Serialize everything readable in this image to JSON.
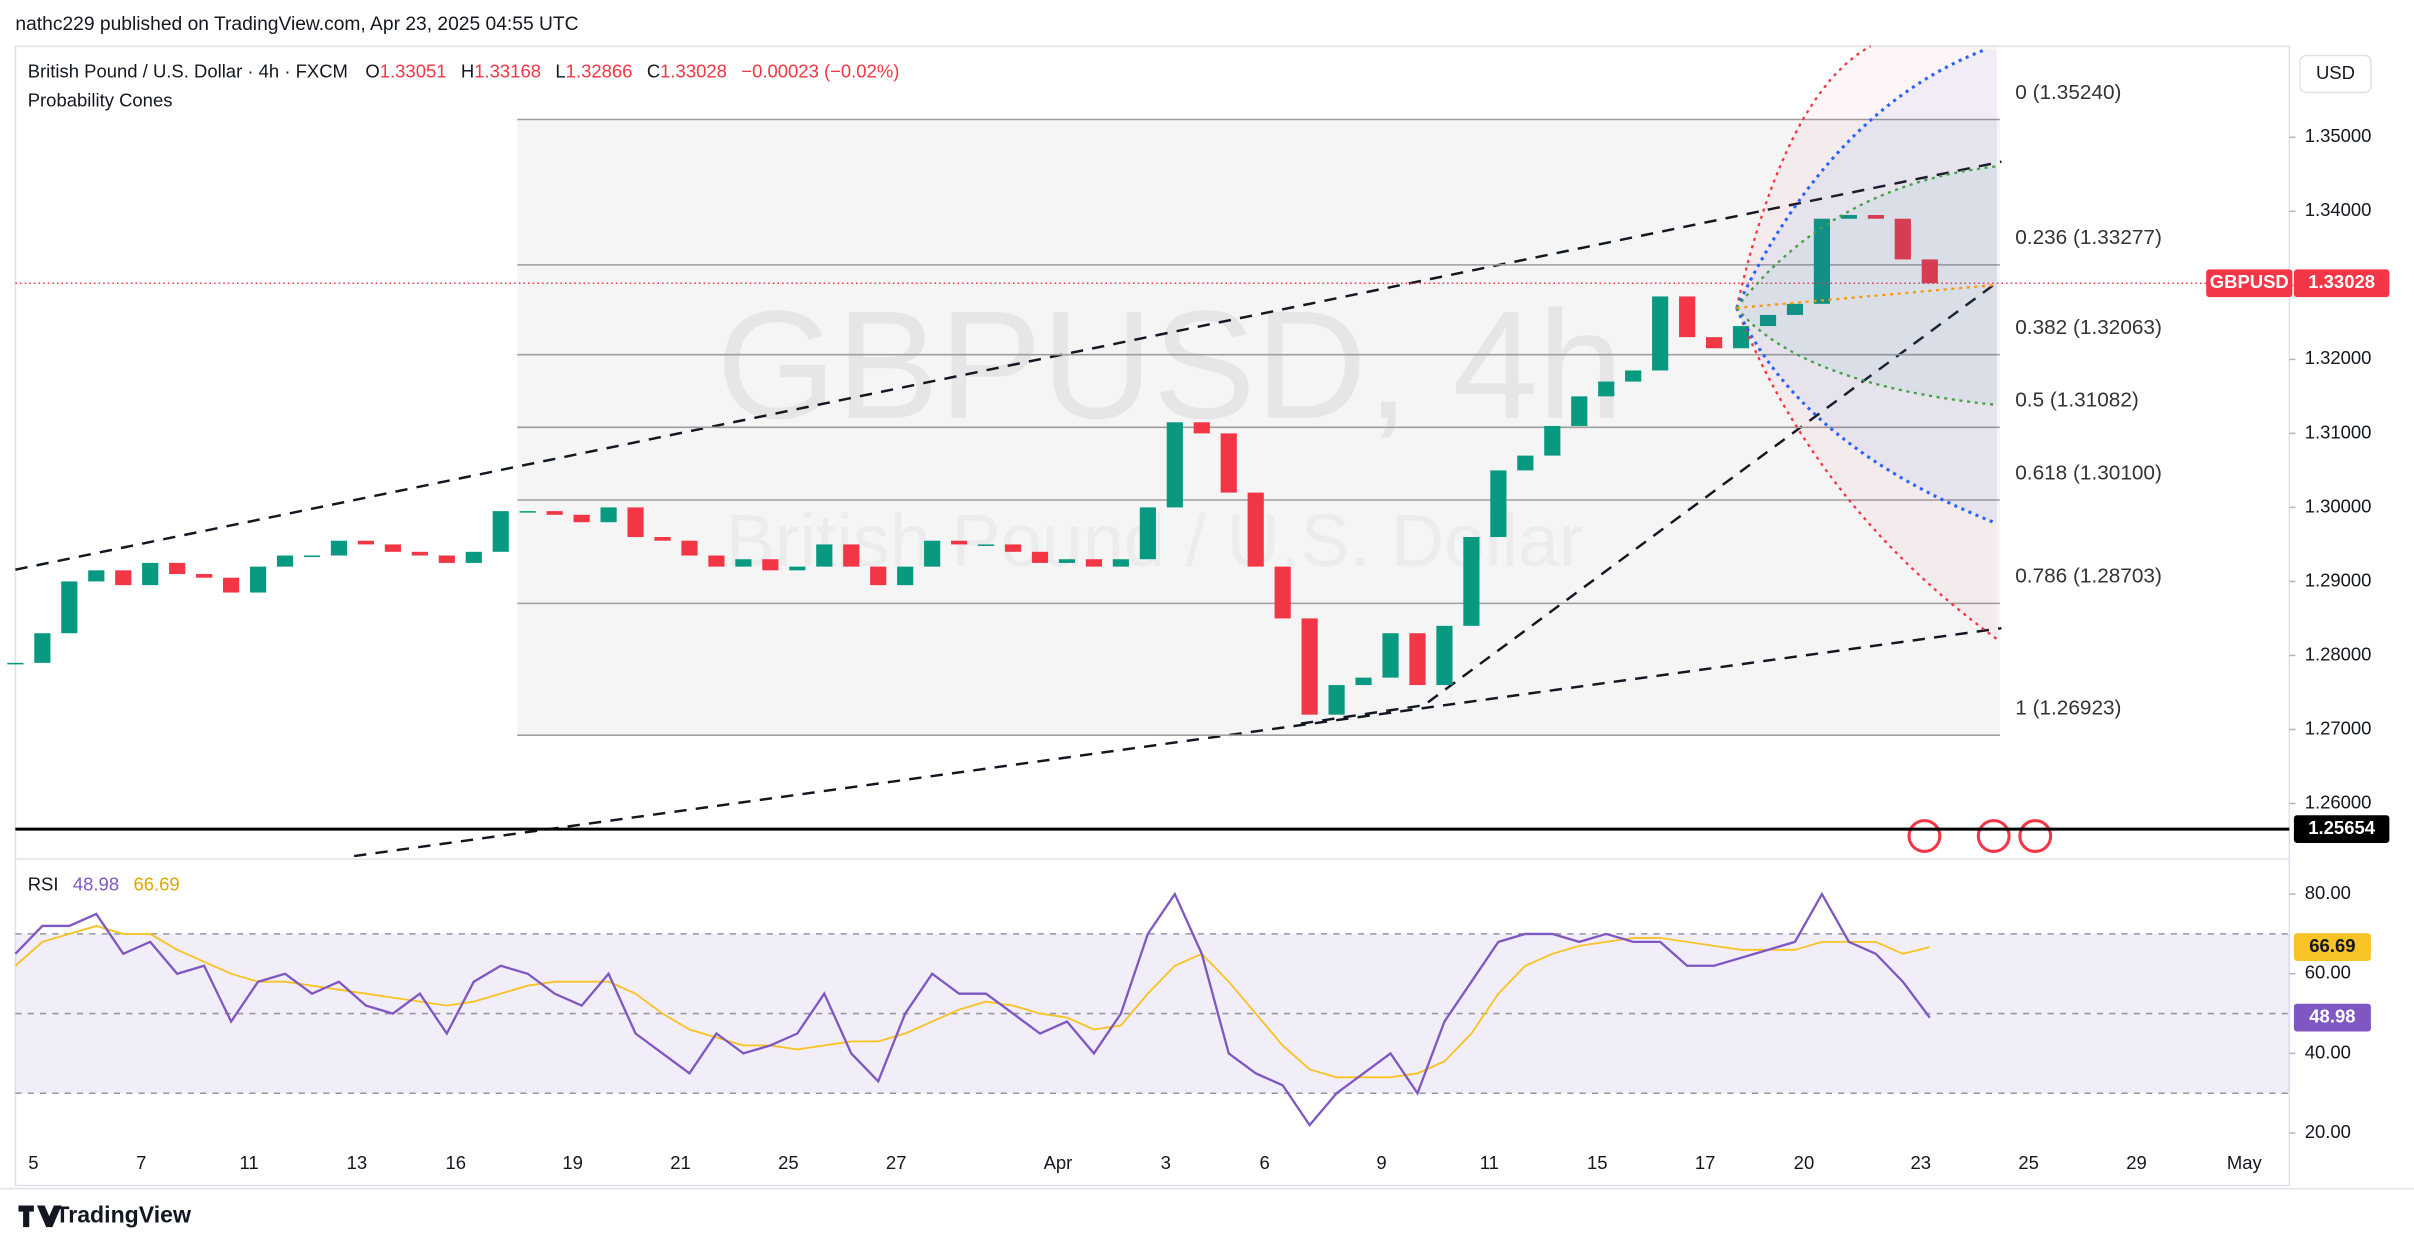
{
  "header": {
    "publisher": "nathc229 published on TradingView.com, Apr 23, 2025 04:55 UTC",
    "symbol": "British Pound / U.S. Dollar · 4h · FXCM",
    "ohlc": [
      {
        "key": "O",
        "value": 1.33051
      },
      {
        "key": "H",
        "value": 1.33168
      },
      {
        "key": "L",
        "value": 1.32866
      },
      {
        "key": "C",
        "value": 1.33028
      }
    ],
    "change": "−0.00023 (−0.02%)",
    "indicator": "Probability Cones",
    "currency": "USD",
    "watermark": "GBPUSD, 4h",
    "watermark_sub": "British Pound / U.S. Dollar",
    "brand": "TradingView"
  },
  "chart_data": [
    {
      "type": "candlestick",
      "x": [
        0,
        3,
        6,
        9,
        12,
        15,
        18,
        21,
        24,
        27,
        30,
        33,
        36,
        39,
        42,
        45,
        48,
        51,
        54,
        57,
        60,
        63,
        66,
        69,
        72,
        75,
        78,
        81,
        84,
        87,
        90,
        93,
        96,
        99,
        102,
        105,
        108,
        111,
        114,
        117,
        120,
        123,
        126,
        129,
        132,
        135,
        138,
        141,
        144,
        147,
        150,
        153,
        156,
        159,
        162,
        165,
        168,
        171,
        174,
        177,
        180,
        183,
        186,
        189,
        192,
        195,
        198,
        201,
        204,
        207,
        210,
        213
      ],
      "series": [
        {
          "name": "GBPUSD",
          "up_color": "#089981",
          "down_color": "#f23645",
          "values": [
            1.279,
            1.283,
            1.29,
            1.2915,
            1.2895,
            1.2925,
            1.291,
            1.2905,
            1.2885,
            1.292,
            1.2935,
            1.2935,
            1.2955,
            1.295,
            1.294,
            1.2935,
            1.2925,
            1.294,
            1.2995,
            1.2995,
            1.299,
            1.298,
            1.3,
            1.296,
            1.2955,
            1.2935,
            1.292,
            1.293,
            1.2915,
            1.292,
            1.295,
            1.292,
            1.2895,
            1.292,
            1.2955,
            1.295,
            1.295,
            1.294,
            1.2925,
            1.293,
            1.292,
            1.293,
            1.3,
            1.3115,
            1.31,
            1.302,
            1.292,
            1.285,
            1.272,
            1.276,
            1.277,
            1.283,
            1.276,
            1.284,
            1.296,
            1.305,
            1.307,
            1.311,
            1.315,
            1.317,
            1.3185,
            1.3285,
            1.323,
            1.3215,
            1.3245,
            1.326,
            1.3275,
            1.339,
            1.3395,
            1.339,
            1.3335,
            1.33028
          ]
        }
      ],
      "xlim": [
        0,
        253
      ],
      "ylim": [
        1.2529,
        1.3623
      ],
      "yticks": [
        {
          "value": 1.35,
          "label": "1.35000"
        },
        {
          "value": 1.34,
          "label": "1.34000"
        },
        {
          "value": 1.33,
          "label": "1.33000"
        },
        {
          "value": 1.32,
          "label": "1.32000"
        },
        {
          "value": 1.31,
          "label": "1.31000"
        },
        {
          "value": 1.3,
          "label": "1.30000"
        },
        {
          "value": 1.29,
          "label": "1.29000"
        },
        {
          "value": 1.28,
          "label": "1.28000"
        },
        {
          "value": 1.27,
          "label": "1.27000"
        },
        {
          "value": 1.26,
          "label": "1.26000"
        }
      ],
      "xticks": [
        {
          "value": 2,
          "label": "5"
        },
        {
          "value": 14,
          "label": "7"
        },
        {
          "value": 26,
          "label": "11"
        },
        {
          "value": 38,
          "label": "13"
        },
        {
          "value": 49,
          "label": "16"
        },
        {
          "value": 62,
          "label": "19"
        },
        {
          "value": 74,
          "label": "21"
        },
        {
          "value": 86,
          "label": "25"
        },
        {
          "value": 98,
          "label": "27"
        },
        {
          "value": 116,
          "label": "Apr"
        },
        {
          "value": 128,
          "label": "3"
        },
        {
          "value": 139,
          "label": "6"
        },
        {
          "value": 152,
          "label": "9"
        },
        {
          "value": 164,
          "label": "11"
        },
        {
          "value": 176,
          "label": "15"
        },
        {
          "value": 188,
          "label": "17"
        },
        {
          "value": 199,
          "label": "20"
        },
        {
          "value": 212,
          "label": "23"
        },
        {
          "value": 224,
          "label": "25"
        },
        {
          "value": 236,
          "label": "29"
        },
        {
          "value": 248,
          "label": "May"
        }
      ],
      "fib": [
        {
          "label": "0 (1.35240)",
          "price": 1.3524
        },
        {
          "label": "0.236 (1.33277)",
          "price": 1.33277
        },
        {
          "label": "0.382 (1.32063)",
          "price": 1.32063
        },
        {
          "label": "0.5 (1.31082)",
          "price": 1.31082
        },
        {
          "label": "0.618 (1.30100)",
          "price": 1.301
        },
        {
          "label": "0.786 (1.28703)",
          "price": 1.28703
        },
        {
          "label": "1 (1.26923)",
          "price": 1.26923
        }
      ],
      "hline": 1.25654
    },
    {
      "type": "line",
      "title": "RSI",
      "x": [
        0,
        3,
        6,
        9,
        12,
        15,
        18,
        21,
        24,
        27,
        30,
        33,
        36,
        39,
        42,
        45,
        48,
        51,
        54,
        57,
        60,
        63,
        66,
        69,
        72,
        75,
        78,
        81,
        84,
        87,
        90,
        93,
        96,
        99,
        102,
        105,
        108,
        111,
        114,
        117,
        120,
        123,
        126,
        129,
        132,
        135,
        138,
        141,
        144,
        147,
        150,
        153,
        156,
        159,
        162,
        165,
        168,
        171,
        174,
        177,
        180,
        183,
        186,
        189,
        192,
        195,
        198,
        201,
        204,
        207,
        210,
        213
      ],
      "series": [
        {
          "name": "RSI",
          "color": "#7e57c2",
          "values": [
            65,
            72,
            72,
            75,
            65,
            68,
            60,
            62,
            48,
            58,
            60,
            55,
            58,
            52,
            50,
            55,
            45,
            58,
            62,
            60,
            55,
            52,
            60,
            45,
            40,
            35,
            45,
            40,
            42,
            45,
            55,
            40,
            33,
            50,
            60,
            55,
            55,
            50,
            45,
            48,
            40,
            50,
            70,
            80,
            65,
            40,
            35,
            32,
            22,
            30,
            35,
            40,
            30,
            48,
            58,
            68,
            70,
            70,
            68,
            70,
            68,
            68,
            62,
            62,
            64,
            66,
            68,
            80,
            68,
            65,
            58,
            48.98
          ]
        },
        {
          "name": "RSI MA",
          "color": "#f7c325",
          "values": [
            62,
            68,
            70,
            72,
            70,
            70,
            66,
            63,
            60,
            58,
            58,
            57,
            56,
            55,
            54,
            53,
            52,
            53,
            55,
            57,
            58,
            58,
            58,
            55,
            50,
            46,
            44,
            42,
            42,
            41,
            42,
            43,
            43,
            45,
            48,
            51,
            53,
            52,
            50,
            49,
            46,
            47,
            55,
            62,
            65,
            58,
            50,
            42,
            36,
            34,
            34,
            34,
            35,
            38,
            45,
            55,
            62,
            65,
            67,
            68,
            69,
            69,
            68,
            67,
            66,
            66,
            66,
            68,
            68,
            68,
            65,
            66.69
          ]
        }
      ],
      "xlim": [
        0,
        253
      ],
      "ylim": [
        16.5,
        88
      ],
      "levels": [
        70,
        50,
        30
      ],
      "yticks": [
        {
          "value": 80,
          "label": "80.00"
        },
        {
          "value": 60,
          "label": "60.00"
        },
        {
          "value": 40,
          "label": "40.00"
        },
        {
          "value": 20,
          "label": "20.00"
        }
      ]
    }
  ]
}
